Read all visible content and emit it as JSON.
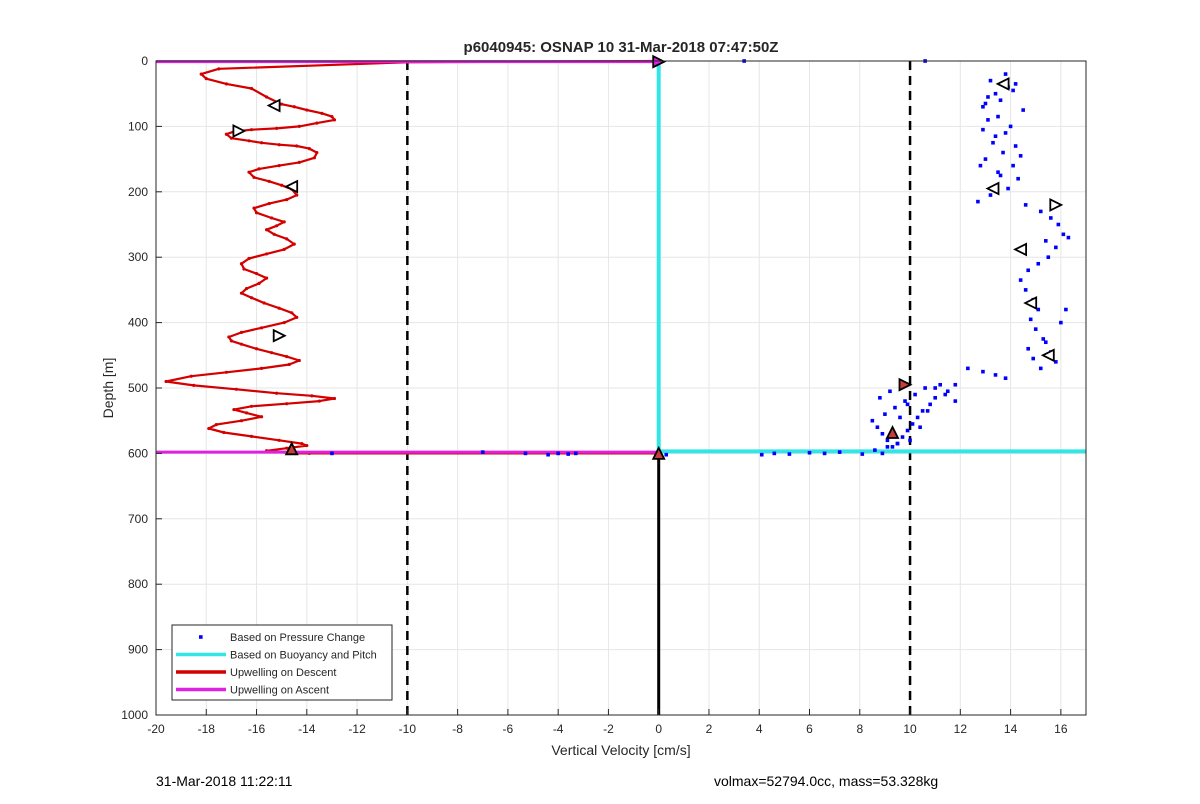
{
  "chart_data": {
    "type": "scatter",
    "title": "p6040945: OSNAP 10 31-Mar-2018 07:47:50Z",
    "xlabel": "Vertical Velocity [cm/s]",
    "ylabel": "Depth [m]",
    "xlim": [
      -20,
      17
    ],
    "ylim": [
      0,
      1000
    ],
    "y_reversed": true,
    "grid": true,
    "x_ticks": [
      -20,
      -18,
      -16,
      -14,
      -12,
      -10,
      -8,
      -6,
      -4,
      -2,
      0,
      2,
      4,
      6,
      8,
      10,
      12,
      14,
      16
    ],
    "y_ticks": [
      0,
      100,
      200,
      300,
      400,
      500,
      600,
      700,
      800,
      900,
      1000
    ],
    "legend_position": "bottom-left",
    "colors": {
      "pressure": "#0000ff",
      "buoyancy": "#33e6e6",
      "descent": "#d40000",
      "ascent": "#e020e0",
      "dashed": "#000000",
      "zero_line": "#000000"
    },
    "series": [
      {
        "name": "Based on Pressure Change",
        "kind": "points",
        "x": [
          13.8,
          13.2,
          14.1,
          13.6,
          14.5,
          13.1,
          12.9,
          13.4,
          14.2,
          13.7,
          13.0,
          12.8,
          13.5,
          14.3,
          13.9,
          13.2,
          12.7,
          13.6,
          14.1,
          14.4,
          13.3,
          13.8,
          14.0,
          13.5,
          12.9,
          13.1,
          13.9,
          14.2,
          13.4,
          13.0,
          14.6,
          15.2,
          15.6,
          15.9,
          16.1,
          15.4,
          15.8,
          16.3,
          15.5,
          15.1,
          14.7,
          14.4,
          14.6,
          14.9,
          15.1,
          14.8,
          15.0,
          15.3,
          14.7,
          14.9,
          15.2,
          15.6,
          15.8,
          15.4,
          16.0,
          16.2,
          13.8,
          13.4,
          12.9,
          12.3,
          11.8,
          11.5,
          11.0,
          10.8,
          10.5,
          10.3,
          10.1,
          9.9,
          9.7,
          9.5,
          9.3,
          9.1,
          8.9,
          8.7,
          8.5,
          9.0,
          9.4,
          9.8,
          10.2,
          10.6,
          11.0,
          11.4,
          11.8,
          10.4,
          9.6,
          9.2,
          8.8,
          9.9,
          10.7,
          11.2,
          8.6,
          9.1,
          9.5,
          10.0,
          3.4,
          10.6,
          4.1,
          4.6,
          5.2,
          6.0,
          6.6,
          7.2,
          8.1,
          8.9,
          -7.0,
          -5.3,
          -4.4,
          -4.0,
          -3.6,
          -3.3,
          -13.0,
          0.3
        ],
        "y": [
          20,
          30,
          45,
          60,
          75,
          90,
          105,
          115,
          130,
          140,
          150,
          160,
          170,
          180,
          195,
          205,
          215,
          175,
          160,
          145,
          125,
          110,
          100,
          85,
          70,
          55,
          40,
          35,
          50,
          65,
          220,
          230,
          240,
          250,
          265,
          275,
          285,
          270,
          300,
          310,
          320,
          335,
          350,
          365,
          380,
          395,
          410,
          425,
          440,
          455,
          470,
          445,
          460,
          430,
          400,
          380,
          485,
          480,
          475,
          470,
          495,
          505,
          515,
          525,
          535,
          545,
          555,
          565,
          575,
          585,
          590,
          580,
          570,
          560,
          550,
          540,
          530,
          520,
          510,
          500,
          500,
          510,
          520,
          560,
          545,
          505,
          515,
          525,
          535,
          495,
          595,
          590,
          585,
          580,
          0,
          0,
          602,
          600,
          601,
          599,
          600,
          598,
          601,
          600,
          598,
          600,
          602,
          600,
          601,
          600,
          600,
          602
        ]
      },
      {
        "name": "Based on Buoyancy and Pitch",
        "kind": "line",
        "x": [
          0,
          0,
          17
        ],
        "y": [
          0,
          597,
          597
        ]
      },
      {
        "name": "Upwelling on Descent",
        "kind": "line",
        "x": [
          0,
          -10,
          -17.5,
          -18.2,
          -18.0,
          -17.2,
          -16.2,
          -15.6,
          -15.0,
          -14.5,
          -14.0,
          -13.4,
          -13.0,
          -12.9,
          -13.6,
          -14.3,
          -15.2,
          -16.2,
          -16.9,
          -17.2,
          -17.0,
          -16.3,
          -15.8,
          -15.1,
          -14.4,
          -13.9,
          -13.6,
          -13.7,
          -14.3,
          -15.1,
          -15.9,
          -16.3,
          -16.1,
          -15.5,
          -15.0,
          -14.6,
          -14.4,
          -14.8,
          -15.5,
          -16.1,
          -16.0,
          -15.4,
          -14.9,
          -15.2,
          -15.6,
          -15.3,
          -14.8,
          -14.5,
          -14.9,
          -15.6,
          -16.3,
          -16.6,
          -16.5,
          -16.0,
          -15.6,
          -15.9,
          -16.4,
          -16.6,
          -16.2,
          -15.7,
          -15.1,
          -14.6,
          -14.4,
          -14.9,
          -15.8,
          -16.6,
          -17.1,
          -17.0,
          -16.6,
          -16.0,
          -15.4,
          -14.8,
          -14.3,
          -14.7,
          -15.8,
          -17.2,
          -18.6,
          -19.6,
          -18.5,
          -16.8,
          -15.2,
          -13.8,
          -12.9,
          -13.5,
          -14.8,
          -16.2,
          -16.9,
          -16.4,
          -15.8,
          -16.6,
          -17.6,
          -17.9,
          -17.3,
          -16.2,
          -15.1,
          -14.2,
          -14.0,
          -14.8,
          -15.6,
          -14.9,
          -14.0,
          -13.9,
          -14.4,
          -14.6,
          -10,
          -5.3,
          0
        ],
        "y": [
          0,
          2,
          12,
          20,
          27,
          35,
          42,
          55,
          66,
          70,
          75,
          80,
          85,
          90,
          95,
          100,
          103,
          105,
          108,
          112,
          118,
          122,
          125,
          128,
          130,
          134,
          140,
          148,
          155,
          160,
          165,
          170,
          178,
          184,
          190,
          196,
          205,
          212,
          218,
          225,
          232,
          240,
          246,
          252,
          258,
          265,
          272,
          280,
          288,
          295,
          302,
          310,
          318,
          325,
          332,
          340,
          348,
          355,
          362,
          370,
          378,
          385,
          392,
          400,
          408,
          415,
          422,
          428,
          433,
          440,
          446,
          452,
          458,
          464,
          470,
          476,
          482,
          490,
          496,
          502,
          508,
          512,
          516,
          520,
          524,
          528,
          533,
          538,
          544,
          550,
          556,
          562,
          568,
          574,
          580,
          585,
          588,
          592,
          596,
          598,
          599,
          600,
          600,
          600,
          600,
          600,
          600
        ]
      },
      {
        "name": "Upwelling on Ascent",
        "kind": "line",
        "x": [
          -20,
          0,
          -20,
          0
        ],
        "y": [
          1,
          1,
          598,
          598
        ]
      }
    ],
    "reference_lines": [
      {
        "x": -10,
        "style": "dashed"
      },
      {
        "x": 10,
        "style": "dashed"
      },
      {
        "x": 0,
        "from_depth": 600,
        "to_depth": 1000,
        "style": "solid"
      }
    ],
    "markers": [
      {
        "x": 13.7,
        "y": 35,
        "dir": "left",
        "fill": "#ffffff"
      },
      {
        "x": -15.3,
        "y": 68,
        "dir": "left",
        "fill": "#ffffff"
      },
      {
        "x": -16.7,
        "y": 107,
        "dir": "right",
        "fill": "#ffffff"
      },
      {
        "x": -14.6,
        "y": 192,
        "dir": "left",
        "fill": "#ffffff"
      },
      {
        "x": 13.3,
        "y": 195,
        "dir": "left",
        "fill": "#ffffff"
      },
      {
        "x": 15.8,
        "y": 220,
        "dir": "right",
        "fill": "#ffffff"
      },
      {
        "x": 14.4,
        "y": 288,
        "dir": "left",
        "fill": "#ffffff"
      },
      {
        "x": 14.8,
        "y": 370,
        "dir": "left",
        "fill": "#ffffff"
      },
      {
        "x": -15.1,
        "y": 420,
        "dir": "right",
        "fill": "#ffffff"
      },
      {
        "x": 15.5,
        "y": 450,
        "dir": "left",
        "fill": "#ffffff"
      },
      {
        "x": 9.8,
        "y": 495,
        "dir": "right",
        "fill": "#c83c3c"
      },
      {
        "x": 9.3,
        "y": 568,
        "dir": "up",
        "fill": "#c83c3c"
      },
      {
        "x": -14.6,
        "y": 593,
        "dir": "up",
        "fill": "#c83c3c"
      },
      {
        "x": 0,
        "y": 1,
        "dir": "right",
        "fill": "#e020e0"
      },
      {
        "x": 0,
        "y": 600,
        "dir": "up",
        "fill": "#c83c3c"
      }
    ]
  },
  "footer": {
    "timestamp": "31-Mar-2018 11:22:11",
    "info": "volmax=52794.0cc, mass=53.328kg"
  }
}
